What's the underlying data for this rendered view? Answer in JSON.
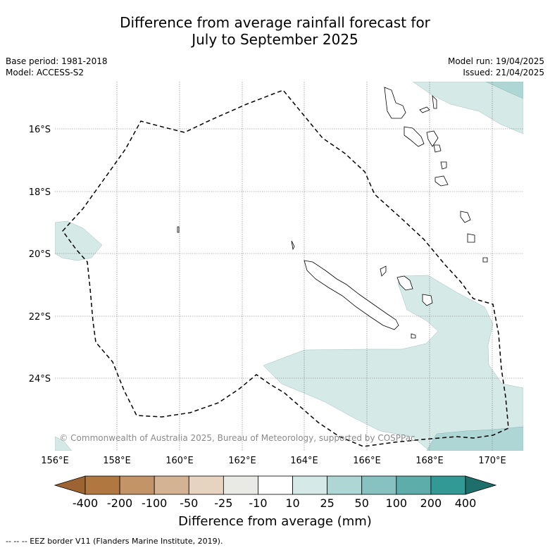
{
  "title": {
    "line1": "Difference from average rainfall forecast for",
    "line2": "July to September 2025"
  },
  "meta_left": {
    "base_period": "Base period: 1981-2018",
    "model": "Model: ACCESS-S2"
  },
  "meta_right": {
    "model_run": "Model run: 19/04/2025",
    "issued": "Issued: 21/04/2025"
  },
  "map": {
    "lat_labels": [
      "16°S",
      "18°S",
      "20°S",
      "22°S",
      "24°S"
    ],
    "lon_labels": [
      "156°E",
      "158°E",
      "160°E",
      "162°E",
      "164°E",
      "166°E",
      "168°E",
      "170°E"
    ],
    "copyright": "© Commonwealth of Australia 2025, Bureau of Meteorology, supported by COSPPac",
    "eez_color": "#000000",
    "land_outline_color": "#000000"
  },
  "colorbar": {
    "ticks": [
      "-400",
      "-200",
      "-100",
      "-50",
      "-25",
      "-10",
      "10",
      "25",
      "50",
      "100",
      "200",
      "400"
    ],
    "colors": [
      "#9b6432",
      "#b07840",
      "#c39468",
      "#d4b294",
      "#e6d3c0",
      "#e9e9e6",
      "#ffffff",
      "#d5e9e7",
      "#aed6d4",
      "#87c2c0",
      "#5daeaa",
      "#339994",
      "#1e6f6b"
    ],
    "label": "Difference from average (mm)"
  },
  "footer": "--  --  -- EEZ border V11 (Flanders Marine Institute, 2019)."
}
